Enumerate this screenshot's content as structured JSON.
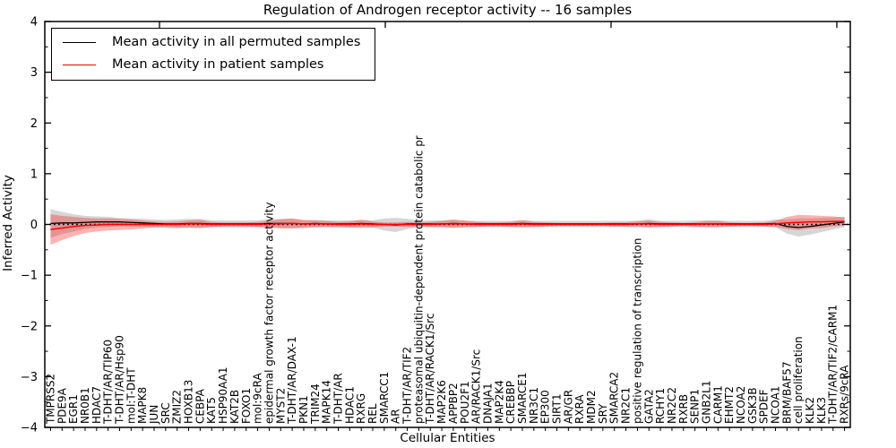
{
  "figure": {
    "title": "Regulation of Androgen receptor activity -- 16 samples",
    "xlabel": "Cellular Entities",
    "ylabel": "Inferred Activity"
  },
  "legend": {
    "entries": [
      {
        "label": "Mean activity in all permuted samples",
        "color": "#000000"
      },
      {
        "label": "Mean activity in patient samples",
        "color": "#ff0000"
      }
    ]
  },
  "chart_data": {
    "type": "line",
    "title": "Regulation of Androgen receptor activity -- 16 samples",
    "xlabel": "Cellular Entities",
    "ylabel": "Inferred Activity",
    "ylim": [
      -4,
      4
    ],
    "xlim": [
      -0.5,
      69.5
    ],
    "grid": false,
    "legend_position": "upper left",
    "yticks": {
      "values": [
        4,
        3,
        2,
        1,
        0,
        -1,
        -2,
        -3,
        -4
      ],
      "labels": [
        "4",
        "3",
        "2",
        "1",
        "0",
        "−1",
        "−2",
        "−3",
        "−4"
      ],
      "minor_step": 0.5
    },
    "zero_line": {
      "y": 0,
      "style": "dotted",
      "color": "#000000"
    },
    "categories": [
      "TMPRSS2",
      "PDE9A",
      "EGR1",
      "NR0B1",
      "HDAC7",
      "T-DHT/AR/TIP60",
      "T-DHT/AR/Hsp90",
      "mol:T-DHT",
      "MAPK8",
      "JUN",
      "SRC",
      "ZMIZ2",
      "HOXB13",
      "CEBPA",
      "KAT5",
      "HSP90AA1",
      "KAT2B",
      "FOXO1",
      "mol:9cRA",
      "epidermal growth factor receptor activity",
      "MYST2",
      "T-DHT/AR/DAX-1",
      "PKN1",
      "TRIM24",
      "MAPK14",
      "T-DHT/AR",
      "HDAC1",
      "RXRG",
      "REL",
      "SMARCC1",
      "AR",
      "T-DHT/AR/TIF2",
      "proteasomal ubiquitin-dependent protein catabolic pr",
      "T-DHT/AR/RACK1/Src",
      "MAP2K6",
      "APPBP2",
      "POU2F1",
      "AR/RACK1/Src",
      "DNAJA1",
      "MAP2K4",
      "CREBBP",
      "SMARCE1",
      "NR3C1",
      "EP300",
      "SIRT1",
      "AR/GR",
      "RXRA",
      "MDM2",
      "SRY",
      "SMARCA2",
      "NR2C1",
      "positive regulation of transcription",
      "GATA2",
      "RCHY1",
      "NR2C2",
      "RXRB",
      "SENP1",
      "GNB2L1",
      "CARM1",
      "EHMT2",
      "NCOA2",
      "GSK3B",
      "SPDEF",
      "NCOA1",
      "BRM/BAF57",
      "cell proliferation",
      "KLK2",
      "KLK3",
      "T-DHT/AR/TIF2/CARM1",
      "RXRs/9cRA"
    ],
    "series": [
      {
        "name": "Mean activity in all permuted samples",
        "color": "#000000",
        "values": [
          0.02,
          0.03,
          0.03,
          0.04,
          0.05,
          0.05,
          0.05,
          0.04,
          0.03,
          0.02,
          0.01,
          0.01,
          0.02,
          0.02,
          0.01,
          0.01,
          0.01,
          0.01,
          0.01,
          0.02,
          0.02,
          0.02,
          0.01,
          0.02,
          0.01,
          0.01,
          0.01,
          0.02,
          0.01,
          0.0,
          -0.01,
          0.01,
          0.01,
          0.01,
          0.01,
          0.02,
          0.01,
          0.01,
          0.01,
          0.01,
          0.01,
          0.02,
          0.01,
          0.01,
          0.01,
          0.01,
          0.01,
          0.01,
          0.01,
          0.01,
          0.01,
          0.01,
          0.02,
          0.01,
          0.01,
          0.01,
          0.01,
          0.01,
          0.01,
          0.01,
          0.01,
          0.01,
          0.01,
          0.02,
          -0.04,
          -0.06,
          -0.04,
          -0.01,
          0.02,
          0.05
        ]
      },
      {
        "name": "Mean activity in patient samples",
        "color": "#ff0000",
        "values": [
          -0.1,
          -0.07,
          -0.04,
          -0.02,
          -0.01,
          0.0,
          0.0,
          0.0,
          0.0,
          0.0,
          0.0,
          0.0,
          0.01,
          0.01,
          0.0,
          0.0,
          0.0,
          0.0,
          0.0,
          0.01,
          0.01,
          0.02,
          0.01,
          0.01,
          0.01,
          0.0,
          0.0,
          0.01,
          0.0,
          0.0,
          0.0,
          0.0,
          0.0,
          0.0,
          0.01,
          0.01,
          0.01,
          0.0,
          0.0,
          0.0,
          0.0,
          0.01,
          0.0,
          0.0,
          0.0,
          0.0,
          0.0,
          0.0,
          0.0,
          0.0,
          0.0,
          0.01,
          0.01,
          0.0,
          0.0,
          0.0,
          0.0,
          0.01,
          0.01,
          0.0,
          0.0,
          0.0,
          0.0,
          0.01,
          0.03,
          0.04,
          0.05,
          0.05,
          0.06,
          0.06
        ]
      }
    ],
    "bands": [
      {
        "name": "permuted samples std band",
        "center_series": 0,
        "fill": "rgba(128,128,128,0.32)",
        "half_widths": [
          0.28,
          0.22,
          0.17,
          0.13,
          0.11,
          0.1,
          0.08,
          0.08,
          0.08,
          0.08,
          0.08,
          0.09,
          0.09,
          0.09,
          0.07,
          0.07,
          0.07,
          0.07,
          0.07,
          0.09,
          0.09,
          0.09,
          0.07,
          0.07,
          0.07,
          0.07,
          0.07,
          0.07,
          0.07,
          0.12,
          0.14,
          0.1,
          0.07,
          0.07,
          0.07,
          0.08,
          0.06,
          0.06,
          0.06,
          0.06,
          0.06,
          0.07,
          0.06,
          0.06,
          0.06,
          0.06,
          0.06,
          0.06,
          0.06,
          0.06,
          0.06,
          0.07,
          0.08,
          0.06,
          0.06,
          0.06,
          0.07,
          0.07,
          0.07,
          0.06,
          0.06,
          0.06,
          0.06,
          0.08,
          0.14,
          0.18,
          0.16,
          0.14,
          0.12,
          0.1
        ]
      },
      {
        "name": "patient samples std band",
        "center_series": 1,
        "fill": "rgba(255,0,0,0.30)",
        "half_widths": [
          0.3,
          0.24,
          0.19,
          0.15,
          0.13,
          0.12,
          0.11,
          0.1,
          0.08,
          0.06,
          0.05,
          0.06,
          0.07,
          0.08,
          0.05,
          0.04,
          0.04,
          0.04,
          0.05,
          0.06,
          0.09,
          0.1,
          0.08,
          0.07,
          0.06,
          0.05,
          0.06,
          0.08,
          0.06,
          0.04,
          0.04,
          0.05,
          0.04,
          0.05,
          0.06,
          0.08,
          0.07,
          0.05,
          0.04,
          0.04,
          0.05,
          0.07,
          0.05,
          0.04,
          0.03,
          0.03,
          0.03,
          0.03,
          0.03,
          0.04,
          0.04,
          0.05,
          0.07,
          0.05,
          0.04,
          0.03,
          0.04,
          0.06,
          0.06,
          0.04,
          0.03,
          0.03,
          0.04,
          0.06,
          0.12,
          0.15,
          0.13,
          0.12,
          0.1,
          0.08
        ]
      }
    ]
  }
}
